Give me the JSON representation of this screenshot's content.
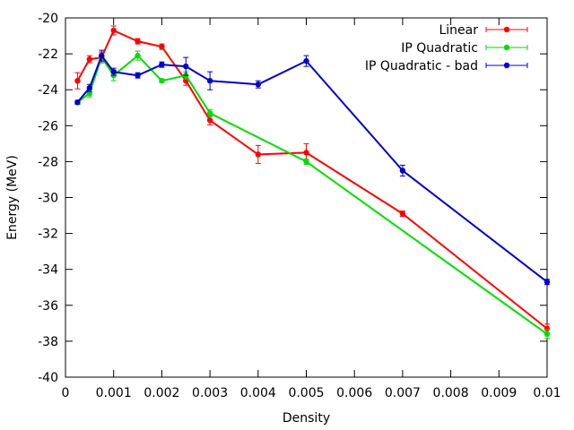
{
  "chart_data": {
    "type": "line",
    "title": "",
    "xlabel": "Density",
    "ylabel": "Energy (MeV)",
    "xlim": [
      0,
      0.01
    ],
    "ylim": [
      -40,
      -20
    ],
    "xticks": [
      0,
      0.001,
      0.002,
      0.003,
      0.004,
      0.005,
      0.006,
      0.007,
      0.008,
      0.009,
      0.01
    ],
    "xtick_labels": [
      "0",
      "0.001",
      "0.002",
      "0.003",
      "0.004",
      "0.005",
      "0.006",
      "0.007",
      "0.008",
      "0.009",
      "0.01"
    ],
    "yticks": [
      -40,
      -38,
      -36,
      -34,
      -32,
      -30,
      -28,
      -26,
      -24,
      -22,
      -20
    ],
    "ytick_labels": [
      "-40",
      "-38",
      "-36",
      "-34",
      "-32",
      "-30",
      "-28",
      "-26",
      "-24",
      "-22",
      "-20"
    ],
    "grid": false,
    "legend_position": "top-right",
    "series": [
      {
        "name": "Linear",
        "color": "#ff0000",
        "x": [
          0.00025,
          0.0005,
          0.00075,
          0.001,
          0.0015,
          0.002,
          0.0025,
          0.003,
          0.004,
          0.005,
          0.007,
          0.01
        ],
        "y": [
          -23.5,
          -22.3,
          -22.2,
          -20.7,
          -21.3,
          -21.6,
          -23.5,
          -25.7,
          -27.6,
          -27.5,
          -30.9,
          -37.3
        ],
        "err": [
          0.45,
          0.2,
          0.3,
          0.25,
          0.15,
          0.15,
          0.25,
          0.25,
          0.5,
          0.5,
          0.15,
          0.25
        ]
      },
      {
        "name": "IP Quadratic",
        "color": "#00dd00",
        "x": [
          0.00025,
          0.0005,
          0.00075,
          0.001,
          0.0015,
          0.002,
          0.0025,
          0.003,
          0.005,
          0.01
        ],
        "y": [
          -24.7,
          -24.2,
          -22.2,
          -23.2,
          -22.1,
          -23.5,
          -23.2,
          -25.3,
          -28.0,
          -37.6
        ],
        "err": [
          0.1,
          0.2,
          0.2,
          0.3,
          0.25,
          0.1,
          0.2,
          0.2,
          0.15,
          0.25
        ]
      },
      {
        "name": "IP Quadratic - bad",
        "color": "#0000cc",
        "x": [
          0.00025,
          0.0005,
          0.00075,
          0.001,
          0.0015,
          0.002,
          0.0025,
          0.003,
          0.004,
          0.005,
          0.007,
          0.01
        ],
        "y": [
          -24.7,
          -23.9,
          -22.1,
          -23.0,
          -23.2,
          -22.6,
          -22.7,
          -23.5,
          -23.7,
          -22.4,
          -28.5,
          -34.7
        ],
        "err": [
          0.1,
          0.2,
          0.3,
          0.2,
          0.15,
          0.15,
          0.5,
          0.5,
          0.2,
          0.3,
          0.3,
          0.15
        ]
      }
    ]
  }
}
